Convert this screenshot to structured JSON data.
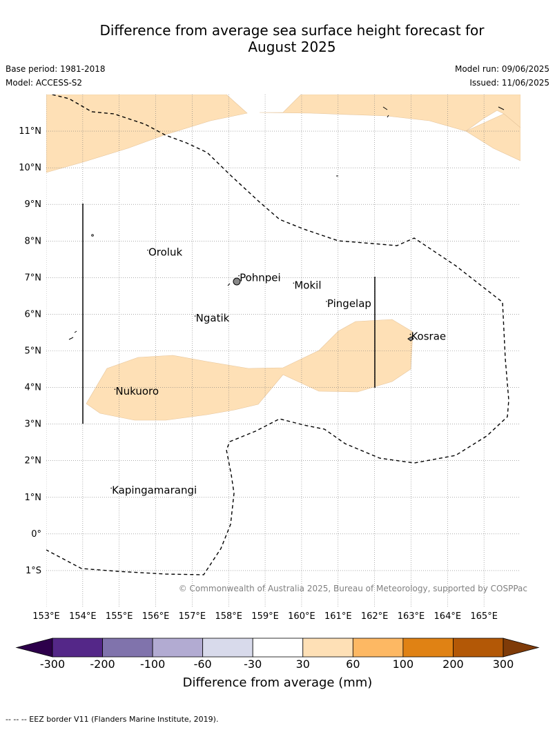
{
  "title_line1": "Difference from average sea surface height forecast for",
  "title_line2": "August 2025",
  "base_period": "Base period: 1981-2018",
  "model": "Model: ACCESS-S2",
  "model_run": "Model run: 09/06/2025",
  "issued": "Issued: 11/06/2025",
  "copyright": "© Commonwealth of Australia 2025, Bureau of Meteorology, supported by COSPPac",
  "footnote": "--  --  -- EEZ border V11 (Flanders Marine Institute, 2019).",
  "map": {
    "lon_range": [
      153,
      166
    ],
    "lat_range": [
      -2,
      12
    ],
    "lat_ticks": [
      {
        "value": 11,
        "label": "11°N"
      },
      {
        "value": 10,
        "label": "10°N"
      },
      {
        "value": 9,
        "label": "9°N"
      },
      {
        "value": 8,
        "label": "8°N"
      },
      {
        "value": 7,
        "label": "7°N"
      },
      {
        "value": 6,
        "label": "6°N"
      },
      {
        "value": 5,
        "label": "5°N"
      },
      {
        "value": 4,
        "label": "4°N"
      },
      {
        "value": 3,
        "label": "3°N"
      },
      {
        "value": 2,
        "label": "2°N"
      },
      {
        "value": 1,
        "label": "1°N"
      },
      {
        "value": 0,
        "label": "0°"
      },
      {
        "value": -1,
        "label": "1°S"
      }
    ],
    "lon_ticks": [
      {
        "value": 153,
        "label": "153°E"
      },
      {
        "value": 154,
        "label": "154°E"
      },
      {
        "value": 155,
        "label": "155°E"
      },
      {
        "value": 156,
        "label": "156°E"
      },
      {
        "value": 157,
        "label": "157°E"
      },
      {
        "value": 158,
        "label": "158°E"
      },
      {
        "value": 159,
        "label": "159°E"
      },
      {
        "value": 160,
        "label": "160°E"
      },
      {
        "value": 161,
        "label": "161°E"
      },
      {
        "value": 162,
        "label": "162°E"
      },
      {
        "value": 163,
        "label": "163°E"
      },
      {
        "value": 164,
        "label": "164°E"
      },
      {
        "value": 165,
        "label": "165°E"
      }
    ],
    "places": [
      {
        "name": "Oroluk",
        "lon": 155.8,
        "lat": 7.6
      },
      {
        "name": "Pohnpei",
        "lon": 158.3,
        "lat": 6.9
      },
      {
        "name": "Mokil",
        "lon": 159.8,
        "lat": 6.7
      },
      {
        "name": "Pingelap",
        "lon": 160.7,
        "lat": 6.2
      },
      {
        "name": "Ngatik",
        "lon": 157.1,
        "lat": 5.8
      },
      {
        "name": "Kosrae",
        "lon": 163.0,
        "lat": 5.3
      },
      {
        "name": "Nukuoro",
        "lon": 154.9,
        "lat": 3.8
      },
      {
        "name": "Kapingamarangi",
        "lon": 154.8,
        "lat": 1.1
      }
    ],
    "shading_color": "#fee0b6",
    "shading_category": "30 to 60 mm"
  },
  "colorbar": {
    "title": "Difference from average (mm)",
    "labels": [
      "-300",
      "-200",
      "-100",
      "-60",
      "-30",
      "30",
      "60",
      "100",
      "200",
      "300"
    ],
    "colors": [
      "#542788",
      "#8073ac",
      "#b2abd2",
      "#d8daeb",
      "#ffffff",
      "#fee0b6",
      "#fdb863",
      "#e08214",
      "#b35806"
    ],
    "under_color": "#2d004b",
    "over_color": "#7f3b08"
  }
}
